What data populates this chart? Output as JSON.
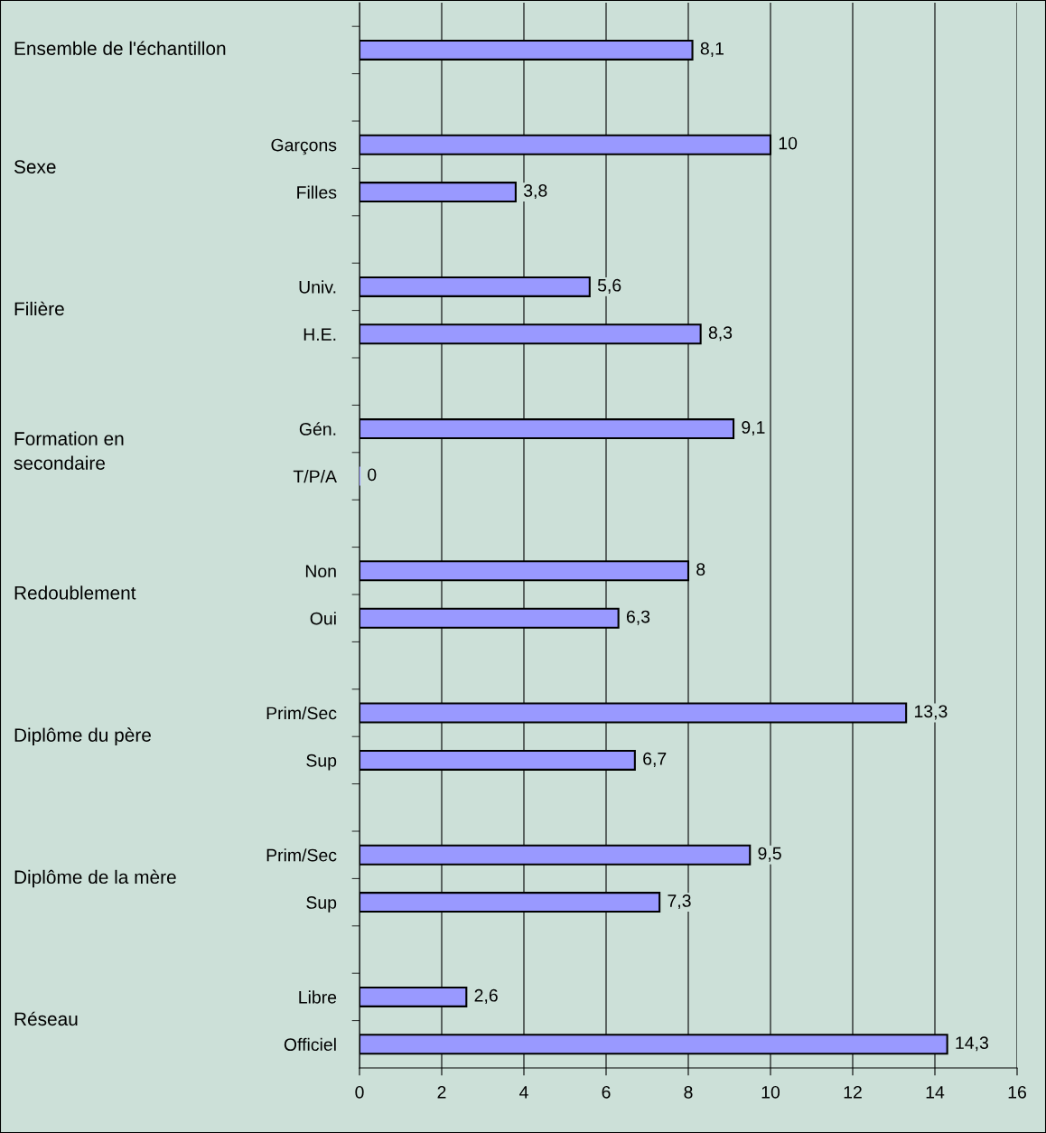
{
  "chart_data": {
    "type": "bar",
    "orientation": "horizontal",
    "categories": [
      null,
      null,
      "Garçons",
      "Filles",
      null,
      "Univ.",
      "H.E.",
      null,
      "Gén.",
      "T/P/A",
      null,
      "Non",
      "Oui",
      null,
      "Prim/Sec",
      "Sup",
      null,
      "Prim/Sec",
      "Sup",
      null,
      "Libre",
      "Officiel"
    ],
    "values": [
      8.1,
      null,
      10,
      3.8,
      null,
      5.6,
      8.3,
      null,
      9.1,
      0,
      null,
      8,
      6.3,
      null,
      13.3,
      6.7,
      null,
      9.5,
      7.3,
      null,
      2.6,
      14.3
    ],
    "value_labels": [
      "8,1",
      null,
      "10",
      "3,8",
      null,
      "5,6",
      "8,3",
      null,
      "9,1",
      "0",
      null,
      "8",
      "6,3",
      null,
      "13,3",
      "6,7",
      null,
      "9,5",
      "7,3",
      null,
      "2,6",
      "14,3"
    ],
    "annotations": [
      "Ensemble de l'échantillon",
      "Sexe",
      "Filière",
      "Formation en\nsecondaire",
      "Redoublement",
      "Diplôme du père",
      "Diplôme de la mère",
      "Réseau"
    ],
    "color": "#9999ff",
    "xlim": [
      0,
      16
    ],
    "xticks": [
      0,
      2,
      4,
      6,
      8,
      10,
      12,
      14,
      16
    ],
    "grid": "x",
    "legend": false
  }
}
